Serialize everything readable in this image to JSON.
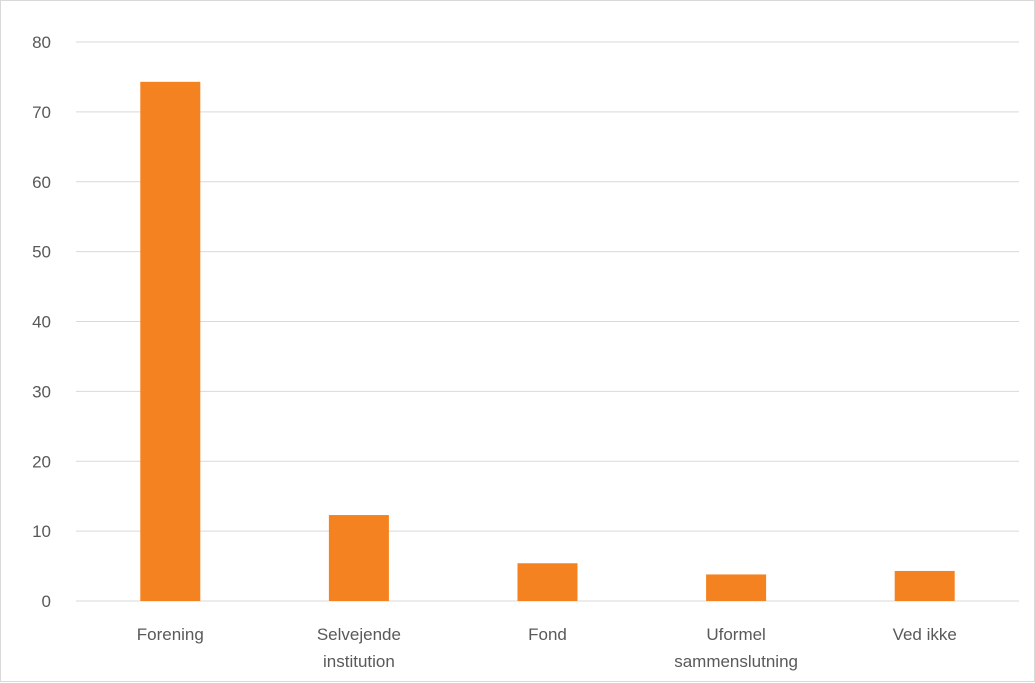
{
  "chart_data": {
    "type": "bar",
    "title": "",
    "xlabel": "",
    "ylabel": "",
    "categories": [
      [
        "Forening"
      ],
      [
        "Selvejende",
        "institution"
      ],
      [
        "Fond"
      ],
      [
        "Uformel",
        "sammenslutning"
      ],
      [
        "Ved ikke"
      ]
    ],
    "values": [
      74.3,
      12.3,
      5.4,
      3.8,
      4.3
    ],
    "ylim": [
      0,
      80
    ],
    "yticks": [
      0,
      10,
      20,
      30,
      40,
      50,
      60,
      70,
      80
    ],
    "grid": true,
    "legend": "none",
    "bar_color": "#F58220",
    "grid_color": "#d9d9d9"
  }
}
